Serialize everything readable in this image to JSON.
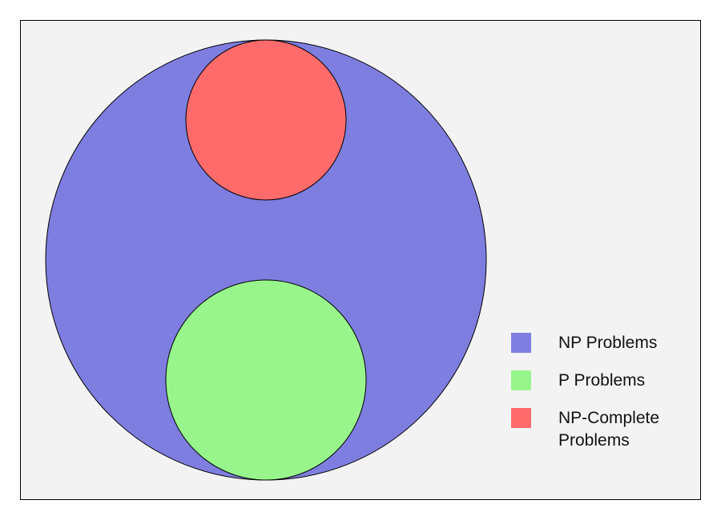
{
  "diagram": {
    "sets": [
      {
        "key": "np",
        "label": "NP Problems",
        "color": "#7e7ee0"
      },
      {
        "key": "p",
        "label": "P Problems",
        "color": "#98f58c"
      },
      {
        "key": "npc",
        "label": "NP-Complete Problems",
        "color": "#ff6b6b"
      }
    ]
  },
  "legend": {
    "items": [
      {
        "label": "NP Problems",
        "color": "#7e7ee0"
      },
      {
        "label": "P Problems",
        "color": "#98f58c"
      },
      {
        "label": "NP-Complete Problems",
        "color": "#ff6b6b"
      }
    ]
  }
}
